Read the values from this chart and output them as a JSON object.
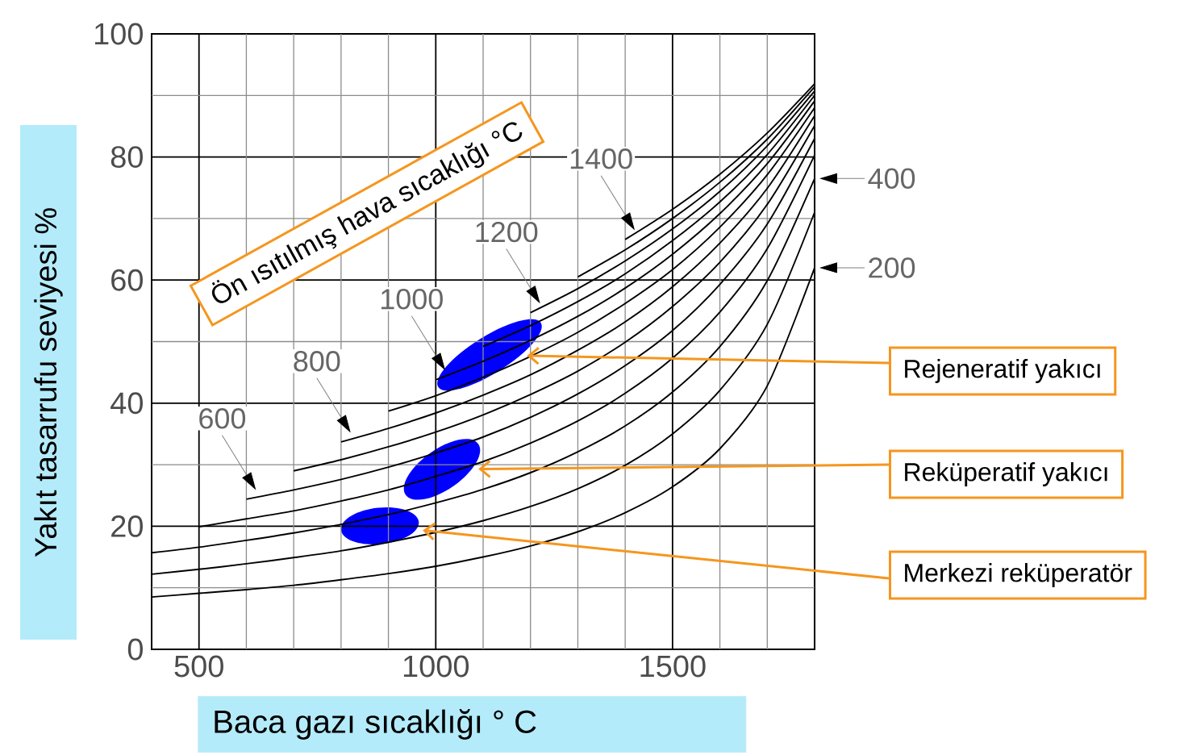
{
  "chart_data": {
    "type": "line",
    "legend_title": "Ön ısıtılmış hava sıcaklığı °C",
    "xlabel": "Baca gazı sıcaklığı ° C",
    "ylabel": "Yakıt tasarrufu seviyesi %",
    "xlim": [
      400,
      1800
    ],
    "ylim": [
      0,
      100
    ],
    "xticks": [
      500,
      {
        "value": 600,
        "label": null
      },
      {
        "value": 700,
        "label": null
      },
      {
        "value": 800,
        "label": null
      },
      {
        "value": 900,
        "label": null
      },
      1000,
      {
        "value": 1100,
        "label": null
      },
      {
        "value": 1200,
        "label": null
      },
      {
        "value": 1300,
        "label": null
      },
      {
        "value": 1400,
        "label": null
      },
      1500,
      {
        "value": 1600,
        "label": null
      },
      {
        "value": 1700,
        "label": null
      }
    ],
    "yticks": [
      0,
      {
        "value": 10,
        "label": null
      },
      20,
      {
        "value": 30,
        "label": null
      },
      40,
      {
        "value": 50,
        "label": null
      },
      60,
      {
        "value": 70,
        "label": null
      },
      80,
      {
        "value": 90,
        "label": null
      },
      100
    ],
    "grid": true,
    "series": [
      {
        "name": "200",
        "color": "#000000",
        "x": [
          400,
          500,
          600,
          700,
          800,
          900,
          1000,
          1100,
          1200,
          1300,
          1400,
          1500,
          1600,
          1700,
          1800
        ],
        "values": [
          8.5,
          9.1,
          9.7,
          10.4,
          11.3,
          12.3,
          13.5,
          15.0,
          16.8,
          19.1,
          22.2,
          26.4,
          32.6,
          42.8,
          62.0
        ]
      },
      {
        "color": "#000000",
        "x": [
          400,
          500,
          600,
          700,
          800,
          900,
          1000,
          1100,
          1200,
          1300,
          1400,
          1500,
          1600,
          1700,
          1800
        ],
        "values": [
          12.2,
          13.0,
          13.9,
          14.9,
          16.0,
          17.4,
          19.0,
          20.9,
          23.2,
          26.1,
          29.9,
          35.0,
          42.1,
          52.8,
          71.0
        ]
      },
      {
        "name": "400",
        "color": "#000000",
        "x": [
          400,
          500,
          600,
          700,
          800,
          900,
          1000,
          1100,
          1200,
          1300,
          1400,
          1500,
          1600,
          1700,
          1800
        ],
        "values": [
          15.7,
          16.6,
          17.7,
          18.9,
          20.3,
          21.9,
          23.8,
          26.0,
          28.7,
          32.1,
          36.3,
          41.8,
          49.2,
          59.9,
          76.5
        ]
      },
      {
        "color": "#000000",
        "x": [
          500,
          600,
          700,
          800,
          900,
          1000,
          1100,
          1200,
          1300,
          1400,
          1500,
          1600,
          1700,
          1800
        ],
        "values": [
          19.9,
          21.2,
          22.5,
          24.1,
          25.9,
          28.1,
          30.5,
          33.5,
          37.1,
          41.6,
          47.3,
          54.8,
          65.1,
          80.3
        ]
      },
      {
        "name": "600",
        "color": "#000000",
        "x": [
          600,
          700,
          800,
          900,
          1000,
          1100,
          1200,
          1300,
          1400,
          1500,
          1600,
          1700,
          1800
        ],
        "values": [
          24.4,
          25.9,
          27.6,
          29.6,
          31.9,
          34.5,
          37.7,
          41.5,
          46.1,
          51.8,
          59.3,
          69.1,
          83.0
        ]
      },
      {
        "color": "#000000",
        "x": [
          700,
          800,
          900,
          1000,
          1100,
          1200,
          1300,
          1400,
          1500,
          1600,
          1700,
          1800
        ],
        "values": [
          29.0,
          30.8,
          32.9,
          35.3,
          38.1,
          41.4,
          45.2,
          49.9,
          55.7,
          62.9,
          72.3,
          85.1
        ]
      },
      {
        "name": "800",
        "color": "#000000",
        "x": [
          800,
          900,
          1000,
          1100,
          1200,
          1300,
          1400,
          1500,
          1600,
          1700,
          1800
        ],
        "values": [
          33.7,
          35.9,
          38.4,
          41.3,
          44.6,
          48.6,
          53.2,
          58.9,
          66.0,
          74.9,
          86.7
        ]
      },
      {
        "color": "#000000",
        "x": [
          900,
          1000,
          1100,
          1200,
          1300,
          1400,
          1500,
          1600,
          1700,
          1800
        ],
        "values": [
          38.7,
          41.2,
          44.2,
          47.6,
          51.5,
          56.2,
          61.7,
          68.6,
          77.1,
          88.0
        ]
      },
      {
        "name": "1000",
        "color": "#000000",
        "x": [
          1000,
          1100,
          1200,
          1300,
          1400,
          1500,
          1600,
          1700,
          1800
        ],
        "values": [
          43.8,
          46.8,
          50.2,
          54.1,
          58.7,
          64.2,
          70.8,
          78.9,
          89.1
        ]
      },
      {
        "color": "#000000",
        "x": [
          1100,
          1200,
          1300,
          1400,
          1500,
          1600,
          1700,
          1800
        ],
        "values": [
          49.2,
          52.6,
          56.5,
          61.0,
          66.4,
          72.7,
          80.4,
          90.0
        ]
      },
      {
        "name": "1200",
        "color": "#000000",
        "x": [
          1200,
          1300,
          1400,
          1500,
          1600,
          1700,
          1800
        ],
        "values": [
          54.7,
          58.6,
          63.1,
          68.3,
          74.4,
          81.8,
          90.7
        ]
      },
      {
        "color": "#000000",
        "x": [
          1300,
          1400,
          1500,
          1600,
          1700,
          1800
        ],
        "values": [
          60.5,
          64.9,
          70.0,
          75.9,
          82.9,
          91.4
        ]
      },
      {
        "name": "1400",
        "color": "#000000",
        "x": [
          1400,
          1500,
          1600,
          1700,
          1800
        ],
        "values": [
          66.6,
          71.5,
          77.2,
          83.9,
          91.9
        ]
      }
    ],
    "annotations": [
      "Rejeneratif yakıcı",
      "Reküperatif yakıcı",
      "Merkezi reküperatör"
    ],
    "legend": "right"
  }
}
